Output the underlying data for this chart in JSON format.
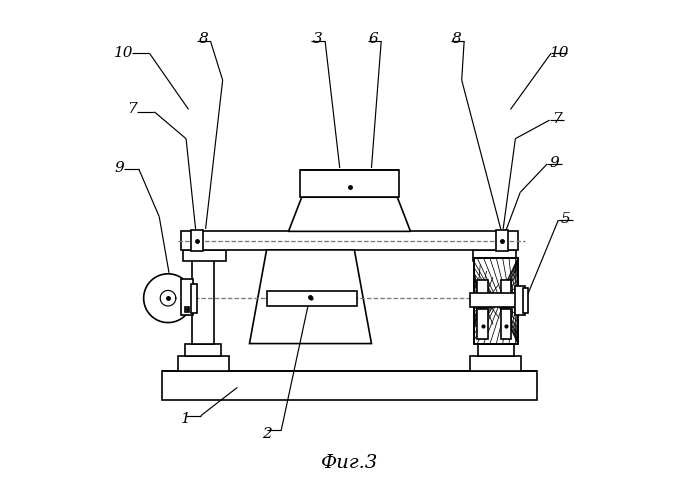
{
  "title": "Фиг.3",
  "bg_color": "#ffffff",
  "line_color": "#000000",
  "dash_color": "#777777",
  "lw": 1.2,
  "lw_thin": 0.55,
  "lw_leader": 0.85
}
